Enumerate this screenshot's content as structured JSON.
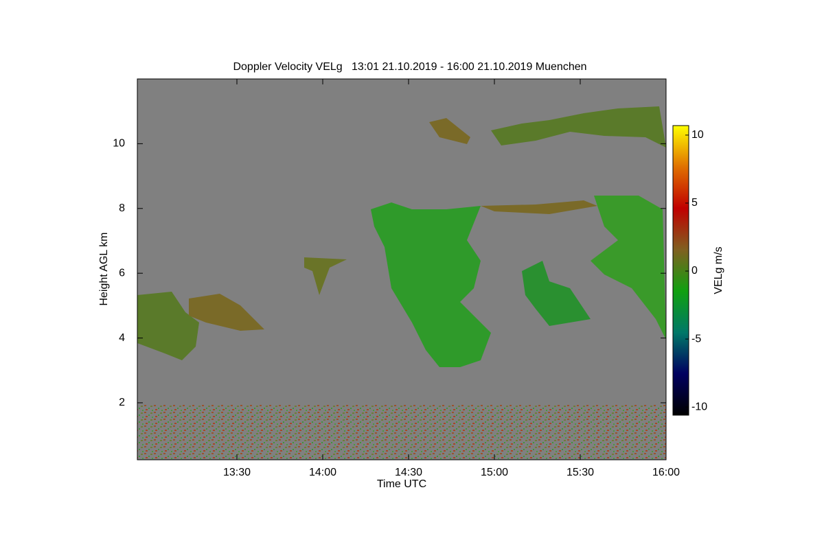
{
  "chart_data": {
    "type": "heatmap",
    "title": "Doppler Velocity VELg   13:01 21.10.2019 - 16:00 21.10.2019 Muenchen",
    "x_label": "Time UTC",
    "y_label": "Height AGL km",
    "xlim": [
      12.92,
      16
    ],
    "xticks": [
      {
        "value": 13.5,
        "label": "13:30"
      },
      {
        "value": 14,
        "label": "14:00"
      },
      {
        "value": 14.5,
        "label": "14:30"
      },
      {
        "value": 15,
        "label": "15:00"
      },
      {
        "value": 15.5,
        "label": "15:30"
      },
      {
        "value": 16,
        "label": "16:00"
      }
    ],
    "ylim": [
      0.24,
      12
    ],
    "yticks": [
      2,
      4,
      6,
      8,
      10
    ],
    "colorbar_label": "VELg m/s",
    "clim": [
      -10.6,
      10.7
    ],
    "cticks": [
      10,
      5,
      0,
      -5,
      -10
    ],
    "colormap": [
      "#000000",
      "#000060",
      "#007868",
      "#10a010",
      "#806020",
      "#c00000",
      "#e07000",
      "#ffff00"
    ],
    "background": "#808080"
  }
}
